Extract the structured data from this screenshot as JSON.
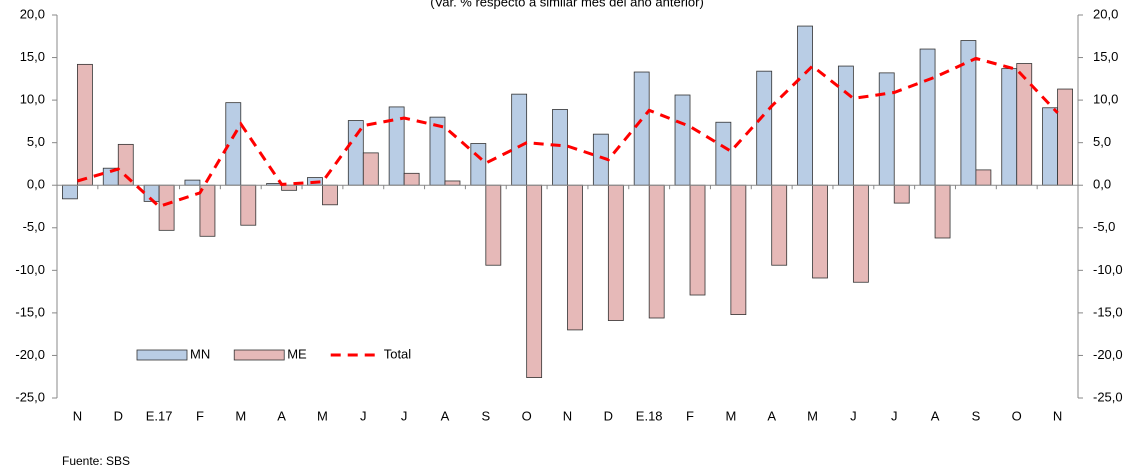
{
  "chart_data": {
    "type": "bar-line",
    "subtitle": "(Var. % respecto a similar mes del año anterior)",
    "source": "Fuente: SBS",
    "categories": [
      "N",
      "D",
      "E.17",
      "F",
      "M",
      "A",
      "M",
      "J",
      "J",
      "A",
      "S",
      "O",
      "N",
      "D",
      "E.18",
      "F",
      "M",
      "A",
      "M",
      "J",
      "J",
      "A",
      "S",
      "O",
      "N"
    ],
    "series": [
      {
        "name": "MN",
        "color": "#b9cde5",
        "kind": "bar",
        "values": [
          -1.6,
          2.0,
          -1.9,
          0.6,
          9.7,
          0.2,
          0.9,
          7.6,
          9.2,
          8.0,
          4.9,
          10.7,
          8.9,
          6.0,
          13.3,
          10.6,
          7.4,
          13.4,
          18.7,
          14.0,
          13.2,
          16.0,
          17.0,
          13.7,
          9.1
        ]
      },
      {
        "name": "ME",
        "color": "#e6b9b8",
        "kind": "bar",
        "values": [
          14.2,
          4.8,
          -5.3,
          -6.0,
          -4.7,
          -0.6,
          -2.3,
          3.8,
          1.4,
          0.5,
          -9.4,
          -22.6,
          -17.0,
          -15.9,
          -15.6,
          -12.9,
          -15.2,
          -9.4,
          -10.9,
          -11.4,
          -2.1,
          -6.2,
          1.8,
          14.3,
          11.3
        ]
      },
      {
        "name": "Total",
        "color": "#ff0000",
        "kind": "line",
        "values": [
          0.5,
          1.9,
          -2.5,
          -0.9,
          7.2,
          0.1,
          0.4,
          7.0,
          7.9,
          6.8,
          2.6,
          5.0,
          4.6,
          3.0,
          8.8,
          6.9,
          4.0,
          9.3,
          14.0,
          10.2,
          10.9,
          12.7,
          14.9,
          13.6,
          8.5
        ]
      }
    ],
    "ylim": [
      -25,
      20
    ],
    "yticks": [
      {
        "value": 20,
        "label": "20,0"
      },
      {
        "value": 15,
        "label": "15,0"
      },
      {
        "value": 10,
        "label": "10,0"
      },
      {
        "value": 5,
        "label": "5,0"
      },
      {
        "value": 0,
        "label": "0,0"
      },
      {
        "value": -5,
        "label": "-5,0"
      },
      {
        "value": -10,
        "label": "-10,0"
      },
      {
        "value": -15,
        "label": "-15,0"
      },
      {
        "value": -20,
        "label": "-20,0"
      },
      {
        "value": -25,
        "label": "-25,0"
      }
    ],
    "y2lim": [
      -25,
      20
    ],
    "y2ticks": [
      {
        "value": 20,
        "label": "20,0"
      },
      {
        "value": 15,
        "label": "15,0"
      },
      {
        "value": 10,
        "label": "10,0"
      },
      {
        "value": 5,
        "label": "5,0"
      },
      {
        "value": 0,
        "label": "0,0"
      },
      {
        "value": -5,
        "label": "-5,0"
      },
      {
        "value": -10,
        "label": "-10,0"
      },
      {
        "value": -15,
        "label": "-15,0"
      },
      {
        "value": -20,
        "label": "-20,0"
      },
      {
        "value": -25,
        "label": "-25,0"
      }
    ],
    "grid": false
  }
}
